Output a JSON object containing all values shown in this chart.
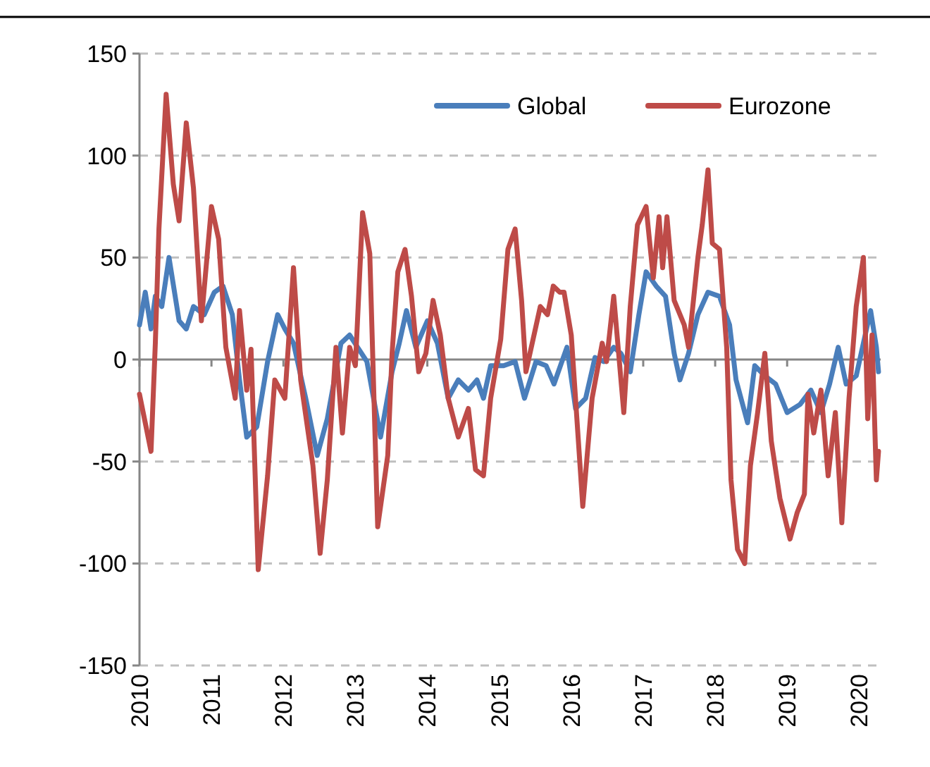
{
  "chart_data": {
    "type": "line",
    "xlim": [
      2010,
      2020.3
    ],
    "xticks": [
      2010,
      2011,
      2012,
      2013,
      2014,
      2015,
      2016,
      2017,
      2018,
      2019,
      2020
    ],
    "ylim": [
      -150,
      150
    ],
    "yticks": [
      -150,
      -100,
      -50,
      0,
      50,
      100,
      150
    ],
    "grid": "y",
    "legend": "top right",
    "line_style": "solid",
    "marker": "none",
    "series": [
      {
        "name": "Global",
        "color": "#4a7ebb",
        "x": [
          2010.0,
          2010.08,
          2010.16,
          2010.22,
          2010.31,
          2010.41,
          2010.55,
          2010.65,
          2010.75,
          2010.9,
          2011.04,
          2011.16,
          2011.29,
          2011.39,
          2011.49,
          2011.63,
          2011.78,
          2011.92,
          2012.02,
          2012.14,
          2012.31,
          2012.47,
          2012.61,
          2012.8,
          2012.92,
          2013.16,
          2013.35,
          2013.51,
          2013.61,
          2013.71,
          2013.84,
          2014.0,
          2014.14,
          2014.29,
          2014.43,
          2014.57,
          2014.69,
          2014.78,
          2014.88,
          2015.06,
          2015.22,
          2015.35,
          2015.51,
          2015.65,
          2015.76,
          2015.94,
          2016.06,
          2016.2,
          2016.33,
          2016.45,
          2016.59,
          2016.69,
          2016.82,
          2016.94,
          2017.04,
          2017.18,
          2017.31,
          2017.43,
          2017.51,
          2017.63,
          2017.76,
          2017.9,
          2018.06,
          2018.2,
          2018.29,
          2018.45,
          2018.55,
          2018.69,
          2018.84,
          2019.0,
          2019.18,
          2019.33,
          2019.47,
          2019.59,
          2019.71,
          2019.82,
          2019.96,
          2020.06,
          2020.16,
          2020.24,
          2020.27
        ],
        "values": [
          17,
          33,
          15,
          31,
          26,
          50,
          19,
          15,
          26,
          22,
          33,
          36,
          22,
          -10,
          -38,
          -33,
          -1,
          22,
          15,
          8,
          -19,
          -47,
          -29,
          8,
          12,
          -1,
          -38,
          -6,
          8,
          24,
          6,
          19,
          8,
          -19,
          -10,
          -15,
          -10,
          -19,
          -3,
          -3,
          -1,
          -19,
          -1,
          -3,
          -12,
          6,
          -24,
          -19,
          1,
          -1,
          6,
          3,
          -6,
          22,
          43,
          36,
          31,
          3,
          -10,
          3,
          22,
          33,
          31,
          17,
          -10,
          -31,
          -3,
          -8,
          -12,
          -26,
          -22,
          -15,
          -26,
          -12,
          6,
          -12,
          -8,
          8,
          24,
          6,
          -6
        ]
      },
      {
        "name": "Eurozone",
        "color": "#be4b48",
        "x": [
          2010.0,
          2010.16,
          2010.22,
          2010.27,
          2010.37,
          2010.47,
          2010.55,
          2010.65,
          2010.75,
          2010.86,
          2011.0,
          2011.1,
          2011.2,
          2011.33,
          2011.39,
          2011.49,
          2011.55,
          2011.65,
          2011.78,
          2011.88,
          2012.02,
          2012.14,
          2012.24,
          2012.41,
          2012.51,
          2012.61,
          2012.73,
          2012.82,
          2012.92,
          2013.0,
          2013.1,
          2013.2,
          2013.31,
          2013.45,
          2013.51,
          2013.59,
          2013.69,
          2013.78,
          2013.88,
          2013.98,
          2014.08,
          2014.18,
          2014.29,
          2014.43,
          2014.57,
          2014.67,
          2014.78,
          2014.88,
          2015.02,
          2015.12,
          2015.22,
          2015.31,
          2015.37,
          2015.47,
          2015.57,
          2015.67,
          2015.75,
          2015.84,
          2015.9,
          2016.0,
          2016.16,
          2016.29,
          2016.43,
          2016.49,
          2016.59,
          2016.73,
          2016.82,
          2016.92,
          2017.04,
          2017.14,
          2017.22,
          2017.27,
          2017.33,
          2017.43,
          2017.57,
          2017.63,
          2017.76,
          2017.82,
          2017.9,
          2017.96,
          2018.06,
          2018.16,
          2018.22,
          2018.31,
          2018.41,
          2018.49,
          2018.59,
          2018.69,
          2018.78,
          2018.9,
          2019.04,
          2019.14,
          2019.24,
          2019.29,
          2019.37,
          2019.47,
          2019.57,
          2019.67,
          2019.76,
          2019.86,
          2019.96,
          2020.06,
          2020.12,
          2020.18,
          2020.24,
          2020.27
        ],
        "values": [
          -17,
          -45,
          8,
          64,
          130,
          86,
          68,
          116,
          84,
          19,
          75,
          59,
          6,
          -19,
          24,
          -15,
          5,
          -103,
          -57,
          -10,
          -19,
          45,
          -10,
          -52,
          -95,
          -59,
          6,
          -36,
          6,
          -3,
          72,
          52,
          -82,
          -47,
          3,
          43,
          54,
          31,
          -6,
          3,
          29,
          12,
          -19,
          -38,
          -24,
          -54,
          -57,
          -19,
          10,
          54,
          64,
          29,
          -6,
          10,
          26,
          22,
          36,
          33,
          33,
          12,
          -72,
          -19,
          8,
          -1,
          31,
          -26,
          26,
          66,
          75,
          40,
          70,
          45,
          70,
          29,
          17,
          6,
          50,
          66,
          93,
          57,
          54,
          6,
          -59,
          -93,
          -100,
          -52,
          -26,
          3,
          -40,
          -68,
          -88,
          -75,
          -66,
          -17,
          -36,
          -15,
          -57,
          -26,
          -80,
          -19,
          26,
          50,
          -29,
          12,
          -59,
          -45
        ]
      }
    ]
  }
}
